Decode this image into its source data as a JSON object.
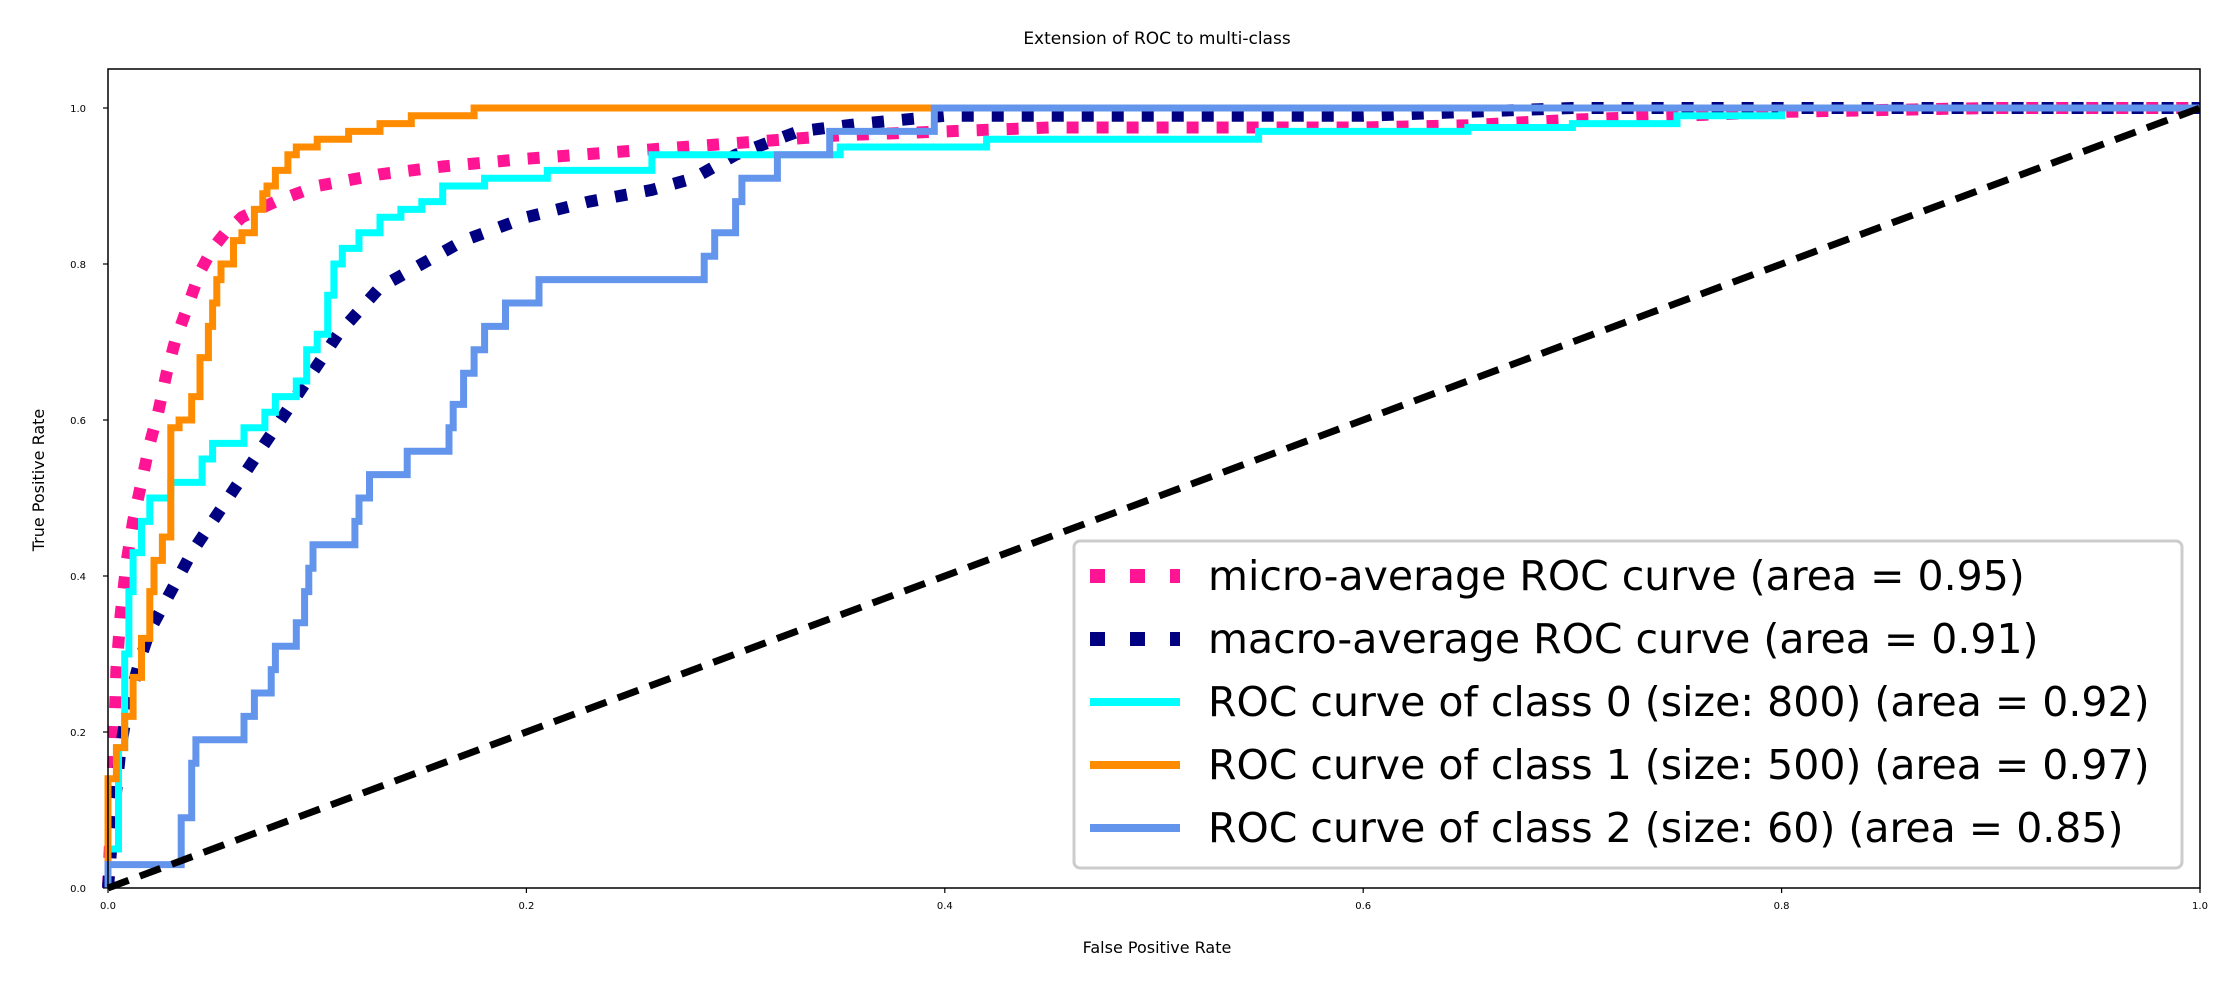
{
  "chart_data": {
    "type": "line",
    "title": "Extension of ROC to multi-class",
    "xlabel": "False Positive Rate",
    "ylabel": "True Positive Rate",
    "xlim": [
      0.0,
      1.0
    ],
    "ylim": [
      0.0,
      1.05
    ],
    "xticks": [
      0.0,
      0.2,
      0.4,
      0.6,
      0.8,
      1.0
    ],
    "yticks": [
      0.0,
      0.2,
      0.4,
      0.6,
      0.8,
      1.0
    ],
    "xtick_labels": [
      "0.0",
      "0.2",
      "0.4",
      "0.6",
      "0.8",
      "1.0"
    ],
    "ytick_labels": [
      "0.0",
      "0.2",
      "0.4",
      "0.6",
      "0.8",
      "1.0"
    ],
    "grid": false,
    "legend_position": "lower-right",
    "series": [
      {
        "name": "micro-average ROC curve (area = 0.95)",
        "color": "#ff1493",
        "style": "dotted",
        "points": [
          [
            0.0,
            0.0
          ],
          [
            0.002,
            0.12
          ],
          [
            0.003,
            0.2
          ],
          [
            0.004,
            0.28
          ],
          [
            0.006,
            0.35
          ],
          [
            0.009,
            0.42
          ],
          [
            0.012,
            0.47
          ],
          [
            0.016,
            0.52
          ],
          [
            0.02,
            0.57
          ],
          [
            0.024,
            0.61
          ],
          [
            0.028,
            0.66
          ],
          [
            0.032,
            0.7
          ],
          [
            0.036,
            0.73
          ],
          [
            0.04,
            0.76
          ],
          [
            0.044,
            0.79
          ],
          [
            0.05,
            0.82
          ],
          [
            0.056,
            0.84
          ],
          [
            0.064,
            0.86
          ],
          [
            0.072,
            0.87
          ],
          [
            0.08,
            0.88
          ],
          [
            0.1,
            0.9
          ],
          [
            0.13,
            0.915
          ],
          [
            0.16,
            0.925
          ],
          [
            0.2,
            0.935
          ],
          [
            0.25,
            0.945
          ],
          [
            0.3,
            0.955
          ],
          [
            0.35,
            0.965
          ],
          [
            0.4,
            0.97
          ],
          [
            0.45,
            0.975
          ],
          [
            0.5,
            0.975
          ],
          [
            0.55,
            0.975
          ],
          [
            0.6,
            0.975
          ],
          [
            0.65,
            0.978
          ],
          [
            0.7,
            0.985
          ],
          [
            0.75,
            0.99
          ],
          [
            0.8,
            0.995
          ],
          [
            0.9,
            1.0
          ],
          [
            1.0,
            1.0
          ]
        ]
      },
      {
        "name": "macro-average ROC curve (area = 0.91)",
        "color": "#000080",
        "style": "dotted",
        "points": [
          [
            0.0,
            0.0
          ],
          [
            0.003,
            0.1
          ],
          [
            0.006,
            0.18
          ],
          [
            0.01,
            0.24
          ],
          [
            0.015,
            0.29
          ],
          [
            0.02,
            0.33
          ],
          [
            0.03,
            0.38
          ],
          [
            0.04,
            0.43
          ],
          [
            0.05,
            0.47
          ],
          [
            0.06,
            0.51
          ],
          [
            0.07,
            0.55
          ],
          [
            0.08,
            0.59
          ],
          [
            0.09,
            0.63
          ],
          [
            0.1,
            0.67
          ],
          [
            0.11,
            0.71
          ],
          [
            0.12,
            0.74
          ],
          [
            0.13,
            0.77
          ],
          [
            0.15,
            0.8
          ],
          [
            0.17,
            0.83
          ],
          [
            0.2,
            0.86
          ],
          [
            0.23,
            0.88
          ],
          [
            0.26,
            0.895
          ],
          [
            0.28,
            0.91
          ],
          [
            0.3,
            0.94
          ],
          [
            0.33,
            0.97
          ],
          [
            0.36,
            0.98
          ],
          [
            0.4,
            0.99
          ],
          [
            0.5,
            0.99
          ],
          [
            0.6,
            0.99
          ],
          [
            0.7,
            1.0
          ],
          [
            0.8,
            1.0
          ],
          [
            1.0,
            1.0
          ]
        ]
      },
      {
        "name": "ROC curve of class 0 (size: 800) (area = 0.92)",
        "color": "#00ffff",
        "style": "solid",
        "points": [
          [
            0.0,
            0.0
          ],
          [
            0.0,
            0.05
          ],
          [
            0.005,
            0.05
          ],
          [
            0.005,
            0.18
          ],
          [
            0.008,
            0.18
          ],
          [
            0.008,
            0.3
          ],
          [
            0.01,
            0.3
          ],
          [
            0.01,
            0.38
          ],
          [
            0.012,
            0.38
          ],
          [
            0.012,
            0.43
          ],
          [
            0.016,
            0.43
          ],
          [
            0.016,
            0.47
          ],
          [
            0.02,
            0.47
          ],
          [
            0.02,
            0.5
          ],
          [
            0.03,
            0.5
          ],
          [
            0.03,
            0.52
          ],
          [
            0.045,
            0.52
          ],
          [
            0.045,
            0.55
          ],
          [
            0.05,
            0.55
          ],
          [
            0.05,
            0.57
          ],
          [
            0.065,
            0.57
          ],
          [
            0.065,
            0.59
          ],
          [
            0.075,
            0.59
          ],
          [
            0.075,
            0.61
          ],
          [
            0.08,
            0.61
          ],
          [
            0.08,
            0.63
          ],
          [
            0.09,
            0.63
          ],
          [
            0.09,
            0.65
          ],
          [
            0.095,
            0.65
          ],
          [
            0.095,
            0.69
          ],
          [
            0.1,
            0.69
          ],
          [
            0.1,
            0.71
          ],
          [
            0.105,
            0.71
          ],
          [
            0.105,
            0.76
          ],
          [
            0.108,
            0.76
          ],
          [
            0.108,
            0.8
          ],
          [
            0.112,
            0.8
          ],
          [
            0.112,
            0.82
          ],
          [
            0.12,
            0.82
          ],
          [
            0.12,
            0.84
          ],
          [
            0.13,
            0.84
          ],
          [
            0.13,
            0.86
          ],
          [
            0.14,
            0.86
          ],
          [
            0.14,
            0.87
          ],
          [
            0.15,
            0.87
          ],
          [
            0.15,
            0.88
          ],
          [
            0.16,
            0.88
          ],
          [
            0.16,
            0.9
          ],
          [
            0.18,
            0.9
          ],
          [
            0.18,
            0.91
          ],
          [
            0.21,
            0.91
          ],
          [
            0.21,
            0.92
          ],
          [
            0.26,
            0.92
          ],
          [
            0.26,
            0.94
          ],
          [
            0.35,
            0.94
          ],
          [
            0.35,
            0.95
          ],
          [
            0.42,
            0.95
          ],
          [
            0.42,
            0.96
          ],
          [
            0.55,
            0.96
          ],
          [
            0.55,
            0.97
          ],
          [
            0.65,
            0.97
          ],
          [
            0.65,
            0.975
          ],
          [
            0.7,
            0.975
          ],
          [
            0.7,
            0.98
          ],
          [
            0.75,
            0.98
          ],
          [
            0.75,
            0.99
          ],
          [
            0.8,
            0.99
          ],
          [
            0.8,
            1.0
          ],
          [
            1.0,
            1.0
          ]
        ]
      },
      {
        "name": "ROC curve of class 1 (size: 500) (area = 0.97)",
        "color": "#ff8c00",
        "style": "solid",
        "points": [
          [
            0.0,
            0.0
          ],
          [
            0.0,
            0.14
          ],
          [
            0.004,
            0.14
          ],
          [
            0.004,
            0.18
          ],
          [
            0.008,
            0.18
          ],
          [
            0.008,
            0.22
          ],
          [
            0.012,
            0.22
          ],
          [
            0.012,
            0.27
          ],
          [
            0.016,
            0.27
          ],
          [
            0.016,
            0.32
          ],
          [
            0.02,
            0.32
          ],
          [
            0.02,
            0.38
          ],
          [
            0.022,
            0.38
          ],
          [
            0.022,
            0.42
          ],
          [
            0.026,
            0.42
          ],
          [
            0.026,
            0.45
          ],
          [
            0.03,
            0.45
          ],
          [
            0.03,
            0.47
          ],
          [
            0.03,
            0.5
          ],
          [
            0.03,
            0.52
          ],
          [
            0.03,
            0.56
          ],
          [
            0.03,
            0.59
          ],
          [
            0.034,
            0.59
          ],
          [
            0.034,
            0.6
          ],
          [
            0.04,
            0.6
          ],
          [
            0.04,
            0.63
          ],
          [
            0.044,
            0.63
          ],
          [
            0.044,
            0.68
          ],
          [
            0.048,
            0.68
          ],
          [
            0.048,
            0.72
          ],
          [
            0.05,
            0.72
          ],
          [
            0.05,
            0.75
          ],
          [
            0.052,
            0.75
          ],
          [
            0.052,
            0.78
          ],
          [
            0.054,
            0.78
          ],
          [
            0.054,
            0.8
          ],
          [
            0.06,
            0.8
          ],
          [
            0.06,
            0.83
          ],
          [
            0.064,
            0.83
          ],
          [
            0.064,
            0.84
          ],
          [
            0.07,
            0.84
          ],
          [
            0.07,
            0.86
          ],
          [
            0.07,
            0.87
          ],
          [
            0.074,
            0.87
          ],
          [
            0.074,
            0.89
          ],
          [
            0.076,
            0.89
          ],
          [
            0.076,
            0.9
          ],
          [
            0.08,
            0.9
          ],
          [
            0.08,
            0.92
          ],
          [
            0.086,
            0.92
          ],
          [
            0.086,
            0.94
          ],
          [
            0.09,
            0.94
          ],
          [
            0.09,
            0.95
          ],
          [
            0.1,
            0.95
          ],
          [
            0.1,
            0.96
          ],
          [
            0.115,
            0.96
          ],
          [
            0.115,
            0.97
          ],
          [
            0.13,
            0.97
          ],
          [
            0.13,
            0.98
          ],
          [
            0.145,
            0.98
          ],
          [
            0.145,
            0.99
          ],
          [
            0.175,
            0.99
          ],
          [
            0.175,
            1.0
          ],
          [
            1.0,
            1.0
          ]
        ]
      },
      {
        "name": "ROC curve of class 2 (size: 60) (area = 0.85)",
        "color": "#6495ed",
        "style": "solid",
        "points": [
          [
            0.0,
            0.0
          ],
          [
            0.0,
            0.03
          ],
          [
            0.035,
            0.03
          ],
          [
            0.035,
            0.09
          ],
          [
            0.04,
            0.09
          ],
          [
            0.04,
            0.16
          ],
          [
            0.042,
            0.16
          ],
          [
            0.042,
            0.19
          ],
          [
            0.065,
            0.19
          ],
          [
            0.065,
            0.22
          ],
          [
            0.07,
            0.22
          ],
          [
            0.07,
            0.25
          ],
          [
            0.078,
            0.25
          ],
          [
            0.078,
            0.28
          ],
          [
            0.08,
            0.28
          ],
          [
            0.08,
            0.31
          ],
          [
            0.09,
            0.31
          ],
          [
            0.09,
            0.34
          ],
          [
            0.094,
            0.34
          ],
          [
            0.094,
            0.38
          ],
          [
            0.096,
            0.38
          ],
          [
            0.096,
            0.41
          ],
          [
            0.098,
            0.41
          ],
          [
            0.098,
            0.44
          ],
          [
            0.118,
            0.44
          ],
          [
            0.118,
            0.47
          ],
          [
            0.12,
            0.47
          ],
          [
            0.12,
            0.5
          ],
          [
            0.125,
            0.5
          ],
          [
            0.125,
            0.53
          ],
          [
            0.143,
            0.53
          ],
          [
            0.143,
            0.56
          ],
          [
            0.163,
            0.56
          ],
          [
            0.163,
            0.59
          ],
          [
            0.165,
            0.59
          ],
          [
            0.165,
            0.62
          ],
          [
            0.17,
            0.62
          ],
          [
            0.17,
            0.66
          ],
          [
            0.175,
            0.66
          ],
          [
            0.175,
            0.69
          ],
          [
            0.18,
            0.69
          ],
          [
            0.18,
            0.72
          ],
          [
            0.19,
            0.72
          ],
          [
            0.19,
            0.75
          ],
          [
            0.206,
            0.75
          ],
          [
            0.206,
            0.78
          ],
          [
            0.285,
            0.78
          ],
          [
            0.285,
            0.81
          ],
          [
            0.29,
            0.81
          ],
          [
            0.29,
            0.84
          ],
          [
            0.3,
            0.84
          ],
          [
            0.3,
            0.88
          ],
          [
            0.303,
            0.88
          ],
          [
            0.303,
            0.91
          ],
          [
            0.32,
            0.91
          ],
          [
            0.32,
            0.94
          ],
          [
            0.345,
            0.94
          ],
          [
            0.345,
            0.97
          ],
          [
            0.395,
            0.97
          ],
          [
            0.395,
            1.0
          ],
          [
            1.0,
            1.0
          ]
        ]
      },
      {
        "name": "",
        "color": "#000000",
        "style": "dashed",
        "points": [
          [
            0.0,
            0.0
          ],
          [
            1.0,
            1.0
          ]
        ]
      }
    ]
  }
}
